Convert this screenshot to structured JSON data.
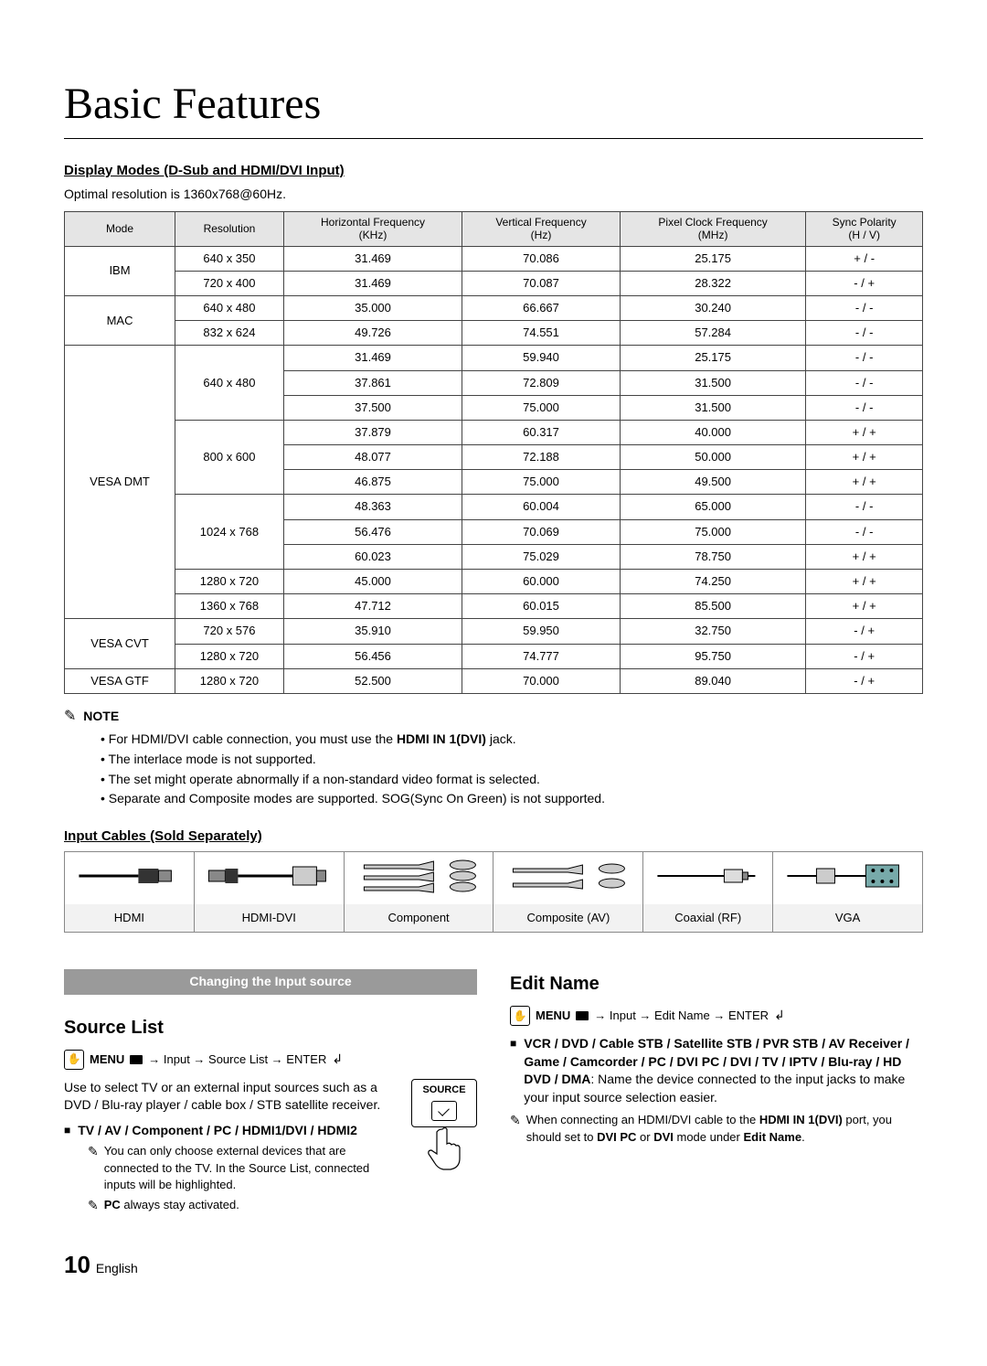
{
  "title": "Basic Features",
  "display_modes": {
    "heading": "Display Modes (D-Sub and HDMI/DVI Input)",
    "optimal": "Optimal resolution is 1360x768@60Hz.",
    "columns": [
      "Mode",
      "Resolution",
      "Horizontal Frequency\n(KHz)",
      "Vertical Frequency\n(Hz)",
      "Pixel Clock Frequency\n(MHz)",
      "Sync Polarity\n(H / V)"
    ],
    "groups": [
      {
        "mode": "IBM",
        "rows": [
          {
            "res": "640 x 350",
            "h": "31.469",
            "v": "70.086",
            "p": "25.175",
            "s": "+ / -"
          },
          {
            "res": "720 x 400",
            "h": "31.469",
            "v": "70.087",
            "p": "28.322",
            "s": "- / +"
          }
        ]
      },
      {
        "mode": "MAC",
        "rows": [
          {
            "res": "640 x 480",
            "h": "35.000",
            "v": "66.667",
            "p": "30.240",
            "s": "- / -"
          },
          {
            "res": "832 x 624",
            "h": "49.726",
            "v": "74.551",
            "p": "57.284",
            "s": "- / -"
          }
        ]
      },
      {
        "mode": "VESA DMT",
        "subgroups": [
          {
            "res": "640 x 480",
            "rows": [
              {
                "h": "31.469",
                "v": "59.940",
                "p": "25.175",
                "s": "- / -"
              },
              {
                "h": "37.861",
                "v": "72.809",
                "p": "31.500",
                "s": "- / -"
              },
              {
                "h": "37.500",
                "v": "75.000",
                "p": "31.500",
                "s": "- / -"
              }
            ]
          },
          {
            "res": "800 x 600",
            "rows": [
              {
                "h": "37.879",
                "v": "60.317",
                "p": "40.000",
                "s": "+ / +"
              },
              {
                "h": "48.077",
                "v": "72.188",
                "p": "50.000",
                "s": "+ / +"
              },
              {
                "h": "46.875",
                "v": "75.000",
                "p": "49.500",
                "s": "+ / +"
              }
            ]
          },
          {
            "res": "1024 x 768",
            "rows": [
              {
                "h": "48.363",
                "v": "60.004",
                "p": "65.000",
                "s": "- / -"
              },
              {
                "h": "56.476",
                "v": "70.069",
                "p": "75.000",
                "s": "- / -"
              },
              {
                "h": "60.023",
                "v": "75.029",
                "p": "78.750",
                "s": "+ / +"
              }
            ]
          },
          {
            "res": "1280 x 720",
            "rows": [
              {
                "h": "45.000",
                "v": "60.000",
                "p": "74.250",
                "s": "+ / +"
              }
            ]
          },
          {
            "res": "1360 x 768",
            "rows": [
              {
                "h": "47.712",
                "v": "60.015",
                "p": "85.500",
                "s": "+ / +"
              }
            ]
          }
        ]
      },
      {
        "mode": "VESA CVT",
        "rows": [
          {
            "res": "720 x 576",
            "h": "35.910",
            "v": "59.950",
            "p": "32.750",
            "s": "- / +"
          },
          {
            "res": "1280 x 720",
            "h": "56.456",
            "v": "74.777",
            "p": "95.750",
            "s": "- / +"
          }
        ]
      },
      {
        "mode": "VESA GTF",
        "rows": [
          {
            "res": "1280 x 720",
            "h": "52.500",
            "v": "70.000",
            "p": "89.040",
            "s": "- / +"
          }
        ]
      }
    ]
  },
  "note": {
    "label": "NOTE",
    "items": [
      "For HDMI/DVI cable connection, you must use the <b>HDMI IN 1(DVI)</b> jack.",
      "The interlace mode is not supported.",
      "The set might operate abnormally if a non-standard video format is selected.",
      "Separate and Composite modes are supported. SOG(Sync On Green) is not supported."
    ]
  },
  "input_cables": {
    "heading": "Input Cables (Sold Separately)",
    "labels": [
      "HDMI",
      "HDMI-DVI",
      "Component",
      "Composite (AV)",
      "Coaxial (RF)",
      "VGA"
    ]
  },
  "changing": {
    "bar": "Changing the Input source",
    "source_list": {
      "title": "Source List",
      "menu_path": "→ Input → Source List → ENTER",
      "menu_label": "MENU",
      "body": "Use to select TV or an external input sources such as a DVD / Blu-ray player / cable box / STB satellite receiver.",
      "sq_item": "TV / AV / Component / PC / HDMI1/DVI / HDMI2",
      "tips": [
        "You can only choose external devices that are connected to the TV. In the Source List, connected inputs will be highlighted.",
        "<b>PC</b> always stay activated."
      ],
      "source_label": "SOURCE"
    },
    "edit_name": {
      "title": "Edit Name",
      "menu_path": "→ Input → Edit Name → ENTER",
      "menu_label": "MENU",
      "sq_item": "<b>VCR / DVD / Cable STB / Satellite STB / PVR STB / AV Receiver / Game / Camcorder / PC / DVI PC / DVI / TV / IPTV / Blu-ray / HD DVD / DMA</b>: Name the device connected to the input jacks to make your input source selection easier.",
      "tip": "When connecting an HDMI/DVI cable to the <b>HDMI IN 1(DVI)</b> port, you should set to <b>DVI PC</b> or <b>DVI</b> mode under <b>Edit Name</b>."
    }
  },
  "footer": {
    "page": "10",
    "lang": "English"
  }
}
